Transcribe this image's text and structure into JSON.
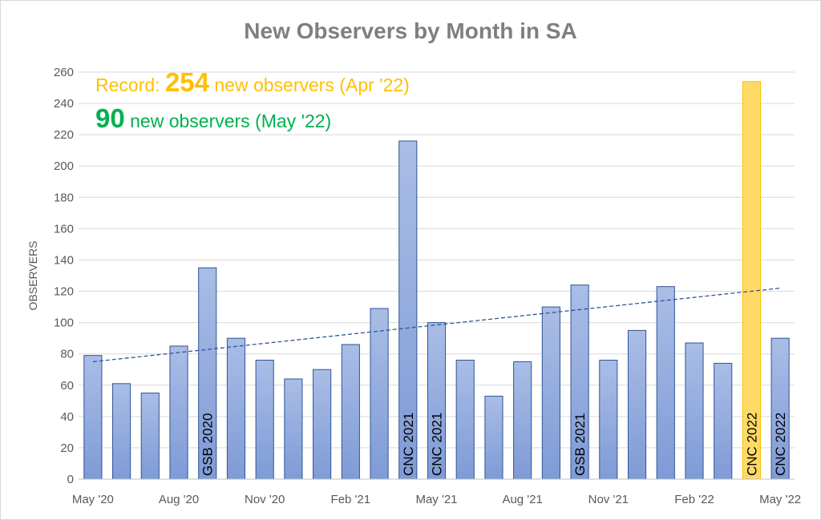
{
  "chart_data": {
    "type": "bar",
    "title": "New Observers by Month in SA",
    "ylabel": "OBSERVERS",
    "xlabel": "",
    "ylim": [
      0,
      260
    ],
    "y_ticks": [
      0,
      20,
      40,
      60,
      80,
      100,
      120,
      140,
      160,
      180,
      200,
      220,
      240,
      260
    ],
    "grid": true,
    "categories": [
      "May '20",
      "Jun '20",
      "Jul '20",
      "Aug '20",
      "Sep '20",
      "Oct '20",
      "Nov '20",
      "Dec '20",
      "Jan '21",
      "Feb '21",
      "Mar '21",
      "Apr '21",
      "May '21",
      "Jun '21",
      "Jul '21",
      "Aug '21",
      "Sep '21",
      "Oct '21",
      "Nov '21",
      "Dec '21",
      "Jan '22",
      "Feb '22",
      "Mar '22",
      "Apr '22",
      "May '22"
    ],
    "x_tick_labels": [
      {
        "index": 0,
        "label": "May '20"
      },
      {
        "index": 3,
        "label": "Aug '20"
      },
      {
        "index": 6,
        "label": "Nov '20"
      },
      {
        "index": 9,
        "label": "Feb '21"
      },
      {
        "index": 12,
        "label": "May '21"
      },
      {
        "index": 15,
        "label": "Aug '21"
      },
      {
        "index": 18,
        "label": "Nov '21"
      },
      {
        "index": 21,
        "label": "Feb '22"
      },
      {
        "index": 24,
        "label": "May '22"
      }
    ],
    "values": [
      79,
      61,
      55,
      85,
      135,
      90,
      76,
      64,
      70,
      86,
      109,
      216,
      100,
      76,
      53,
      75,
      110,
      124,
      76,
      95,
      123,
      87,
      74,
      254,
      90
    ],
    "highlight": {
      "index": 23,
      "color": "#ffd966",
      "stroke": "#ffc000"
    },
    "bar_color": "#8faadc",
    "bar_stroke": "#2f5597",
    "bar_annotations": [
      {
        "index": 4,
        "text": "GSB 2020"
      },
      {
        "index": 11,
        "text": "CNC 2021"
      },
      {
        "index": 12,
        "text": "CNC 2021"
      },
      {
        "index": 17,
        "text": "GSB 2021"
      },
      {
        "index": 23,
        "text": "CNC 2022"
      },
      {
        "index": 24,
        "text": "CNC 2022"
      }
    ],
    "trendline": {
      "type": "linear",
      "start": 75,
      "end": 122,
      "color": "#2f5597",
      "style": "dashed"
    },
    "annotations": {
      "record_prefix": "Record: ",
      "record_value": "254",
      "record_suffix": " new observers (Apr '22)",
      "latest_value": "90",
      "latest_suffix": " new observers (May '22)",
      "record_color": "#ffc000",
      "latest_color": "#00b050"
    }
  }
}
